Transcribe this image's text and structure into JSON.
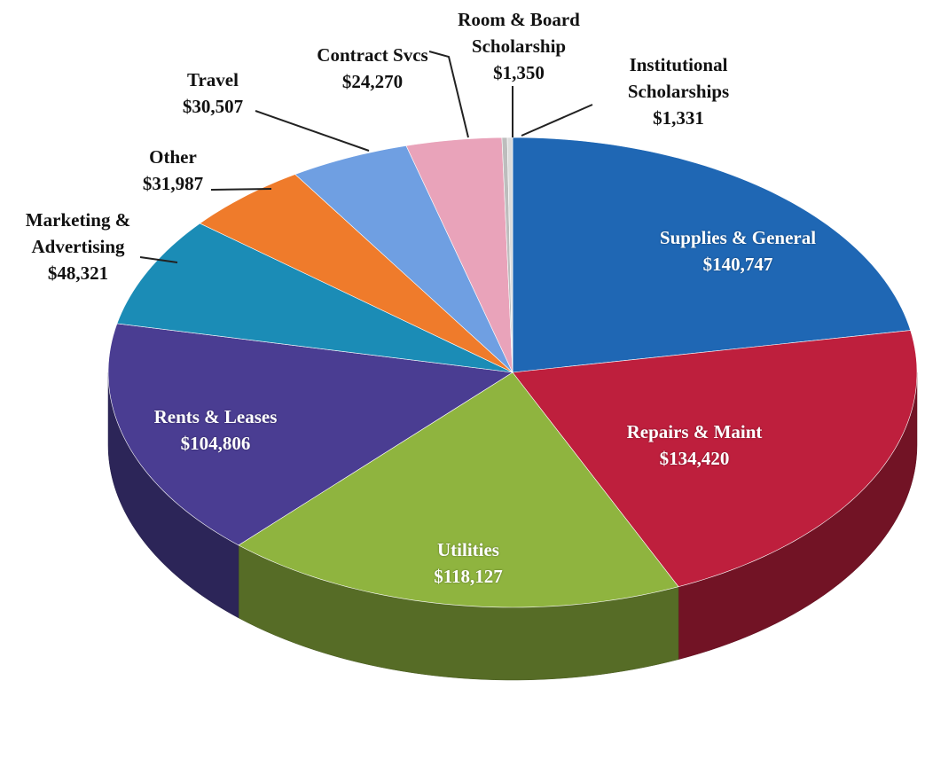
{
  "chart_data": {
    "type": "pie3d",
    "categories": [
      "Supplies & General",
      "Repairs & Maint",
      "Utilities",
      "Rents & Leases",
      "Marketing & Advertising",
      "Other",
      "Travel",
      "Contract Svcs",
      "Room & Board Scholarship",
      "Institutional Scholarships"
    ],
    "values": [
      140747,
      134420,
      118127,
      104806,
      48321,
      31987,
      30507,
      24270,
      1350,
      1331
    ],
    "value_labels": [
      "$140,747",
      "$134,420",
      "$118,127",
      "$104,806",
      "$48,321",
      "$31,987",
      "$30,507",
      "$24,270",
      "$1,350",
      "$1,331"
    ],
    "colors": [
      "#1f67b4",
      "#be1f3d",
      "#8fb43f",
      "#4a3d92",
      "#1b8cb6",
      "#ef7b2b",
      "#6f9fe2",
      "#e9a3ba",
      "#bdbdbd",
      "#dcdcdc"
    ]
  }
}
